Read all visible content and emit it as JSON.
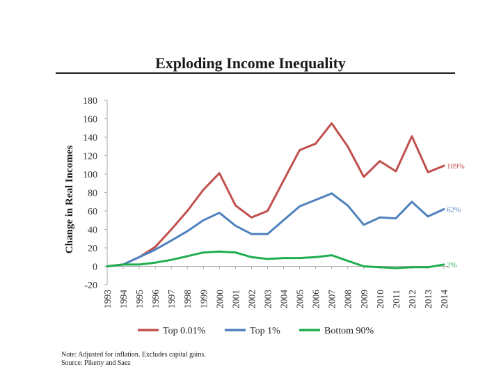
{
  "title": "Exploding Income Inequality",
  "notes": {
    "line1": "Note: Adjusted for inflation.  Excludes capital gains.",
    "line2": "Source: Piketty and Saez"
  },
  "chart_data": {
    "type": "line",
    "title": "Exploding Income Inequality",
    "xlabel": "",
    "ylabel": "Change in Real Incomes",
    "ylim": [
      -20,
      180
    ],
    "yticks": [
      -20,
      0,
      20,
      40,
      60,
      80,
      100,
      120,
      140,
      160,
      180
    ],
    "grid": false,
    "legend_position": "bottom",
    "categories": [
      "1993",
      "1994",
      "1995",
      "1996",
      "1997",
      "1998",
      "1999",
      "2000",
      "2001",
      "2002",
      "2003",
      "2004",
      "2005",
      "2006",
      "2007",
      "2008",
      "2009",
      "2010",
      "2011",
      "2012",
      "2013",
      "2014"
    ],
    "series": [
      {
        "name": "Top 0.01%",
        "color": "#c0504d",
        "end_label": "109%",
        "values": [
          0,
          2,
          10,
          21,
          40,
          60,
          83,
          101,
          66,
          53,
          60,
          93,
          126,
          133,
          155,
          130,
          97,
          114,
          103,
          141,
          102,
          109
        ]
      },
      {
        "name": "Top 1%",
        "color": "#4f81bd",
        "end_label": "62%",
        "values": [
          0,
          2,
          10,
          18,
          28,
          38,
          50,
          58,
          44,
          35,
          35,
          50,
          65,
          72,
          79,
          66,
          45,
          53,
          52,
          70,
          54,
          62
        ]
      },
      {
        "name": "Bottom 90%",
        "color": "#1fae4f",
        "end_label": "2%",
        "values": [
          0,
          2,
          2,
          4,
          7,
          11,
          15,
          16,
          15,
          10,
          8,
          9,
          9,
          10,
          12,
          6,
          0,
          -1,
          -2,
          -1,
          -1,
          2
        ]
      }
    ]
  }
}
